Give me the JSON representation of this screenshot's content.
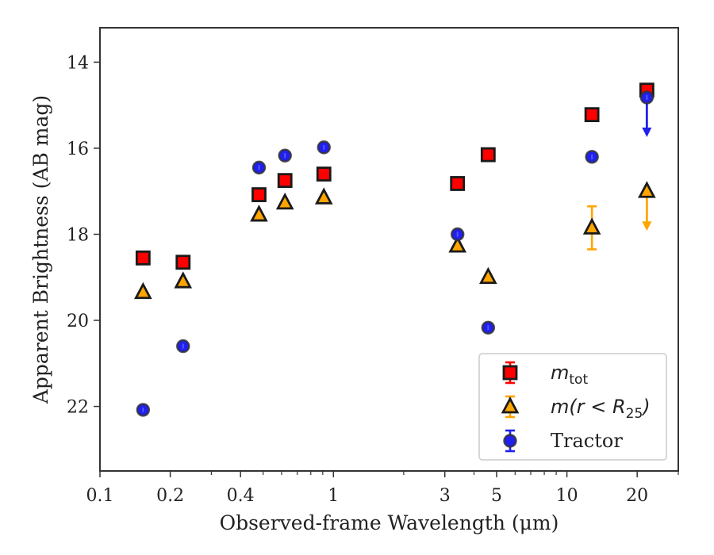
{
  "chart_data": {
    "type": "scatter",
    "xlabel": "Observed-frame Wavelength (μm)",
    "ylabel": "Apparent Brightness (AB mag)",
    "x_scale": "log",
    "xlim": [
      0.1,
      30
    ],
    "ylim": [
      23.5,
      13.2
    ],
    "y_inverted": true,
    "x_ticks": [
      {
        "value": 0.1,
        "label": "0.1"
      },
      {
        "value": 0.2,
        "label": "0.2"
      },
      {
        "value": 0.4,
        "label": "0.4"
      },
      {
        "value": 1,
        "label": "1"
      },
      {
        "value": 3,
        "label": "3"
      },
      {
        "value": 5,
        "label": "5"
      },
      {
        "value": 10,
        "label": "10"
      },
      {
        "value": 20,
        "label": "20"
      }
    ],
    "y_ticks": [
      {
        "value": 14,
        "label": "14"
      },
      {
        "value": 16,
        "label": "16"
      },
      {
        "value": 18,
        "label": "18"
      },
      {
        "value": 20,
        "label": "20"
      },
      {
        "value": 22,
        "label": "22"
      }
    ],
    "legend_position": "bottom-right",
    "series": [
      {
        "name": "m_tot",
        "marker": "square",
        "color": "#ff0000",
        "edge": "#1a1a1a",
        "x": [
          0.153,
          0.227,
          0.48,
          0.62,
          0.91,
          3.4,
          4.6,
          12.8,
          22
        ],
        "y": [
          18.55,
          18.65,
          17.08,
          16.75,
          16.6,
          16.82,
          16.15,
          15.22,
          14.65
        ],
        "upper_limit": [
          false,
          false,
          false,
          false,
          false,
          false,
          false,
          false,
          false
        ]
      },
      {
        "name": "m(r < R_25)",
        "marker": "triangle",
        "color": "#ffa500",
        "edge": "#1a1a1a",
        "x": [
          0.153,
          0.227,
          0.48,
          0.62,
          0.91,
          3.4,
          4.6,
          12.8,
          22
        ],
        "y": [
          19.35,
          19.1,
          17.55,
          17.27,
          17.15,
          18.27,
          19.0,
          17.85,
          17.0
        ],
        "yerr": [
          0,
          0,
          0,
          0,
          0,
          0,
          0,
          0.5,
          0
        ],
        "upper_limit": [
          false,
          false,
          false,
          false,
          false,
          false,
          false,
          false,
          true
        ]
      },
      {
        "name": "Tractor",
        "marker": "circle",
        "color": "#2020ee",
        "edge": "#333333",
        "x": [
          0.153,
          0.227,
          0.48,
          0.62,
          0.91,
          3.4,
          4.6,
          12.8,
          22
        ],
        "y": [
          22.08,
          20.6,
          16.45,
          16.17,
          15.98,
          18.0,
          20.17,
          16.2,
          14.82
        ],
        "upper_limit": [
          false,
          false,
          false,
          false,
          false,
          false,
          false,
          false,
          true
        ]
      }
    ],
    "legend": [
      {
        "label_main": "m",
        "label_sub": "tot",
        "series": 0
      },
      {
        "label_main": "m(r < R",
        "label_sub": "25",
        "label_tail": ")",
        "series": 1
      },
      {
        "label_main": "Tractor",
        "series": 2
      }
    ]
  }
}
